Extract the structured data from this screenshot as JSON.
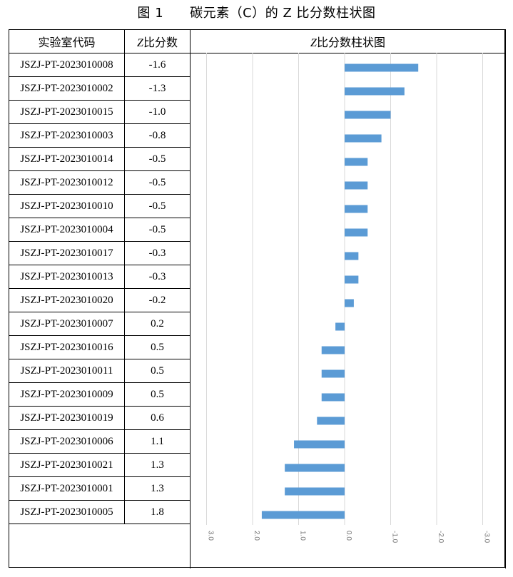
{
  "caption": "图 1　　碳元素（C）的 Z 比分数柱状图",
  "table": {
    "col1_header": "实验室代码",
    "col2_header_z": "Z",
    "col2_header_rest": "比分数",
    "col3_header_z": "Z",
    "col3_header_rest": "比分数柱状图"
  },
  "chart_data": {
    "type": "bar",
    "orientation": "horizontal",
    "x_reversed": true,
    "xlim": [
      3.0,
      -3.0
    ],
    "xticks": [
      "3.0",
      "2.0",
      "1.0",
      "0.0",
      "-1.0",
      "-2.0",
      "-3.0"
    ],
    "grid": true,
    "bar_color": "#5B9BD5",
    "categories": [
      "JSZJ-PT-2023010008",
      "JSZJ-PT-2023010002",
      "JSZJ-PT-2023010015",
      "JSZJ-PT-2023010003",
      "JSZJ-PT-2023010014",
      "JSZJ-PT-2023010012",
      "JSZJ-PT-2023010010",
      "JSZJ-PT-2023010004",
      "JSZJ-PT-2023010017",
      "JSZJ-PT-2023010013",
      "JSZJ-PT-2023010020",
      "JSZJ-PT-2023010007",
      "JSZJ-PT-2023010016",
      "JSZJ-PT-2023010011",
      "JSZJ-PT-2023010009",
      "JSZJ-PT-2023010019",
      "JSZJ-PT-2023010006",
      "JSZJ-PT-2023010021",
      "JSZJ-PT-2023010001",
      "JSZJ-PT-2023010005"
    ],
    "labels": [
      "-1.6",
      "-1.3",
      "-1.0",
      "-0.8",
      "-0.5",
      "-0.5",
      "-0.5",
      "-0.5",
      "-0.3",
      "-0.3",
      "-0.2",
      "0.2",
      "0.5",
      "0.5",
      "0.5",
      "0.6",
      "1.1",
      "1.3",
      "1.3",
      "1.8"
    ],
    "values": [
      -1.6,
      -1.3,
      -1.0,
      -0.8,
      -0.5,
      -0.5,
      -0.5,
      -0.5,
      -0.3,
      -0.3,
      -0.2,
      0.2,
      0.5,
      0.5,
      0.5,
      0.6,
      1.1,
      1.3,
      1.3,
      1.8
    ]
  }
}
